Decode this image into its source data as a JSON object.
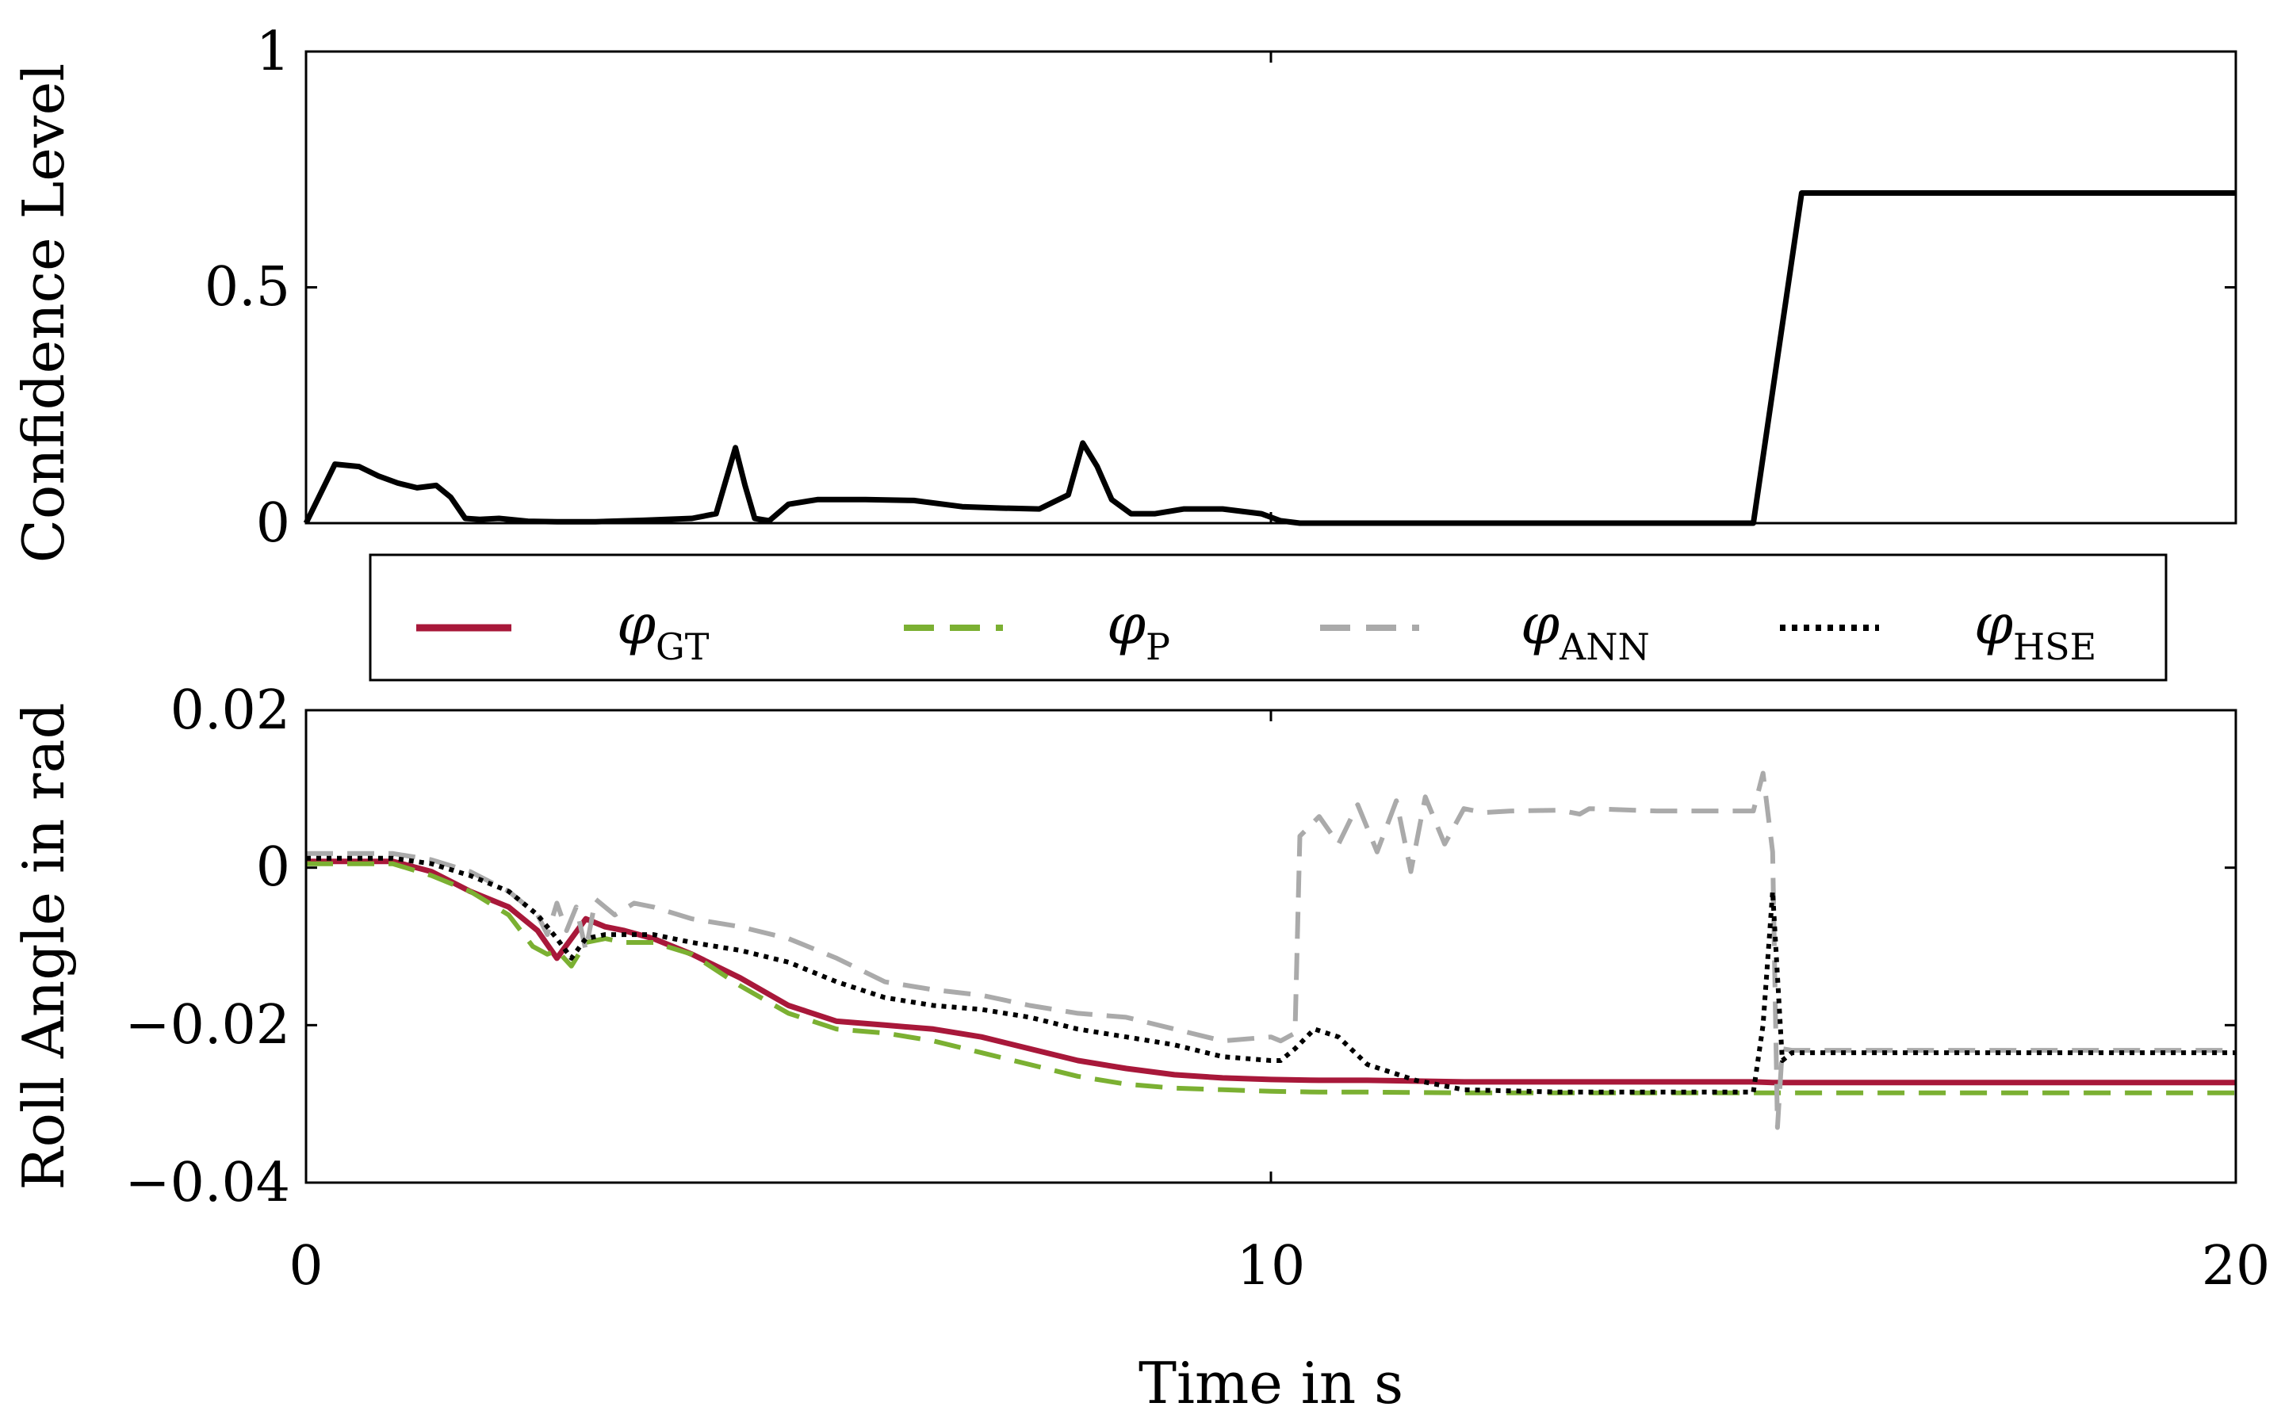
{
  "chart_data": [
    {
      "type": "line",
      "ylabel": "Confidence Level",
      "xlabel": "",
      "xlim": [
        0,
        20
      ],
      "ylim": [
        0,
        1
      ],
      "xticks": [
        0,
        10,
        20
      ],
      "yticks": [
        "0",
        "0.5",
        "1"
      ],
      "series": [
        {
          "name": "Confidence Level",
          "color": "#000000",
          "x": [
            0,
            0.3,
            0.55,
            0.75,
            0.95,
            1.15,
            1.35,
            1.5,
            1.65,
            1.8,
            2.0,
            2.3,
            2.6,
            3.0,
            3.5,
            4.0,
            4.25,
            4.35,
            4.45,
            4.55,
            4.65,
            4.8,
            5.0,
            5.3,
            5.8,
            6.3,
            6.8,
            7.2,
            7.6,
            7.9,
            8.05,
            8.2,
            8.35,
            8.55,
            8.8,
            9.1,
            9.5,
            9.9,
            10.1,
            10.3,
            11.0,
            12.0,
            13.0,
            14.0,
            15.0,
            15.25,
            15.5,
            16.0,
            17.0,
            18.0,
            19.0,
            20.0
          ],
          "values": [
            0.0,
            0.125,
            0.12,
            0.1,
            0.085,
            0.075,
            0.08,
            0.055,
            0.01,
            0.008,
            0.01,
            0.004,
            0.003,
            0.003,
            0.006,
            0.01,
            0.02,
            0.09,
            0.16,
            0.08,
            0.01,
            0.005,
            0.04,
            0.05,
            0.05,
            0.048,
            0.035,
            0.032,
            0.03,
            0.06,
            0.17,
            0.12,
            0.05,
            0.02,
            0.02,
            0.03,
            0.03,
            0.02,
            0.005,
            0.0,
            0.0,
            0.0,
            0.0,
            0.0,
            0.0,
            0.35,
            0.7,
            0.7,
            0.7,
            0.7,
            0.7,
            0.7
          ]
        }
      ]
    },
    {
      "type": "line",
      "title": "",
      "xlabel": "Time in s",
      "ylabel": "Roll Angle in rad",
      "xlim": [
        0,
        20
      ],
      "ylim": [
        -0.04,
        0.02
      ],
      "xticks": [
        "0",
        "10",
        "20"
      ],
      "yticks": [
        "0.02",
        "0",
        "−0.02",
        "−0.04"
      ],
      "legend": {
        "placement": "between panels",
        "entries": [
          {
            "symbol": "φ",
            "subscript": "GT"
          },
          {
            "symbol": "φ",
            "subscript": "P"
          },
          {
            "symbol": "φ",
            "subscript": "ANN"
          },
          {
            "symbol": "φ",
            "subscript": "HSE"
          }
        ]
      },
      "series": [
        {
          "name": "φ GT",
          "color": "#a8183a",
          "style": "solid",
          "x": [
            0,
            0.9,
            1.3,
            1.7,
            2.1,
            2.4,
            2.6,
            2.75,
            2.9,
            3.1,
            3.3,
            3.6,
            4.0,
            4.5,
            5.0,
            5.5,
            6.0,
            6.5,
            7.0,
            7.5,
            8.0,
            8.5,
            9.0,
            9.5,
            10.0,
            10.5,
            11.0,
            12.0,
            13.0,
            14.0,
            15.0,
            15.2,
            16.0,
            17.0,
            18.0,
            19.0,
            20.0
          ],
          "values": [
            0.0008,
            0.0008,
            -0.0005,
            -0.003,
            -0.005,
            -0.008,
            -0.0115,
            -0.009,
            -0.0065,
            -0.0075,
            -0.008,
            -0.009,
            -0.011,
            -0.014,
            -0.0175,
            -0.0195,
            -0.02,
            -0.0205,
            -0.0215,
            -0.023,
            -0.0245,
            -0.0255,
            -0.0263,
            -0.0267,
            -0.0269,
            -0.027,
            -0.027,
            -0.0272,
            -0.0272,
            -0.0272,
            -0.0272,
            -0.0273,
            -0.0273,
            -0.0273,
            -0.0273,
            -0.0273,
            -0.0273
          ]
        },
        {
          "name": "φ P",
          "color": "#7bb032",
          "style": "dashed",
          "x": [
            0,
            0.9,
            1.3,
            1.7,
            2.1,
            2.35,
            2.5,
            2.6,
            2.75,
            2.9,
            3.1,
            3.3,
            3.6,
            4.0,
            4.5,
            5.0,
            5.5,
            6.0,
            6.5,
            7.0,
            7.5,
            8.0,
            8.5,
            9.0,
            9.5,
            10.0,
            10.5,
            11.0,
            12.0,
            13.0,
            14.0,
            15.0,
            16.0,
            17.0,
            18.0,
            19.0,
            20.0
          ],
          "values": [
            0.0005,
            0.0005,
            -0.001,
            -0.003,
            -0.006,
            -0.01,
            -0.011,
            -0.0105,
            -0.0125,
            -0.0095,
            -0.009,
            -0.0095,
            -0.0095,
            -0.011,
            -0.015,
            -0.0185,
            -0.0205,
            -0.021,
            -0.022,
            -0.0235,
            -0.025,
            -0.0265,
            -0.0275,
            -0.028,
            -0.0282,
            -0.0284,
            -0.0285,
            -0.0285,
            -0.0286,
            -0.0286,
            -0.0286,
            -0.0286,
            -0.0286,
            -0.0286,
            -0.0286,
            -0.0286,
            -0.0286
          ]
        },
        {
          "name": "φ ANN",
          "color": "#aaaaaa",
          "style": "dashed",
          "x": [
            0,
            0.9,
            1.3,
            1.7,
            2.1,
            2.4,
            2.5,
            2.6,
            2.7,
            2.8,
            2.9,
            3.0,
            3.2,
            3.4,
            3.6,
            4.0,
            4.5,
            5.0,
            5.5,
            6.0,
            6.5,
            7.0,
            7.5,
            8.0,
            8.5,
            9.0,
            9.5,
            10.0,
            10.1,
            10.25,
            10.3,
            10.5,
            10.7,
            10.9,
            11.1,
            11.3,
            11.45,
            11.6,
            11.8,
            12.0,
            12.2,
            12.5,
            13.0,
            13.2,
            13.3,
            14.0,
            15.0,
            15.1,
            15.2,
            15.25,
            15.3,
            15.4,
            16.0,
            17.0,
            18.0,
            19.0,
            20.0
          ],
          "values": [
            0.0018,
            0.0018,
            0.001,
            -0.0005,
            -0.003,
            -0.006,
            -0.0085,
            -0.0045,
            -0.008,
            -0.005,
            -0.0105,
            -0.004,
            -0.006,
            -0.0045,
            -0.005,
            -0.0065,
            -0.0075,
            -0.009,
            -0.0115,
            -0.0145,
            -0.0155,
            -0.0162,
            -0.0175,
            -0.0185,
            -0.019,
            -0.0205,
            -0.022,
            -0.0215,
            -0.022,
            -0.021,
            0.004,
            0.0065,
            0.003,
            0.008,
            0.002,
            0.0085,
            -0.0005,
            0.009,
            0.003,
            0.0075,
            0.007,
            0.0072,
            0.0073,
            0.0068,
            0.0075,
            0.0072,
            0.0072,
            0.012,
            0.002,
            -0.033,
            -0.023,
            -0.0232,
            -0.0232,
            -0.0232,
            -0.0232,
            -0.0232,
            -0.0232
          ]
        },
        {
          "name": "φ HSE",
          "color": "#000000",
          "style": "dotted",
          "x": [
            0,
            0.9,
            1.3,
            1.7,
            2.1,
            2.4,
            2.6,
            2.75,
            2.9,
            3.1,
            3.3,
            3.6,
            4.0,
            4.5,
            5.0,
            5.5,
            6.0,
            6.5,
            7.0,
            7.5,
            8.0,
            8.5,
            9.0,
            9.5,
            10.0,
            10.1,
            10.25,
            10.45,
            10.7,
            11.0,
            11.5,
            12.0,
            13.0,
            14.0,
            15.0,
            15.1,
            15.2,
            15.3,
            15.4,
            16.0,
            17.0,
            18.0,
            19.0,
            20.0
          ],
          "values": [
            0.0012,
            0.0012,
            0.0005,
            -0.001,
            -0.003,
            -0.006,
            -0.009,
            -0.0115,
            -0.009,
            -0.0085,
            -0.0085,
            -0.0085,
            -0.0095,
            -0.0105,
            -0.012,
            -0.0145,
            -0.0165,
            -0.0175,
            -0.018,
            -0.019,
            -0.0205,
            -0.0215,
            -0.0225,
            -0.024,
            -0.0245,
            -0.0245,
            -0.023,
            -0.0205,
            -0.0215,
            -0.025,
            -0.027,
            -0.0282,
            -0.0285,
            -0.0285,
            -0.0285,
            -0.02,
            -0.003,
            -0.0245,
            -0.0235,
            -0.0235,
            -0.0235,
            -0.0235,
            -0.0235,
            -0.0235
          ]
        }
      ]
    }
  ]
}
